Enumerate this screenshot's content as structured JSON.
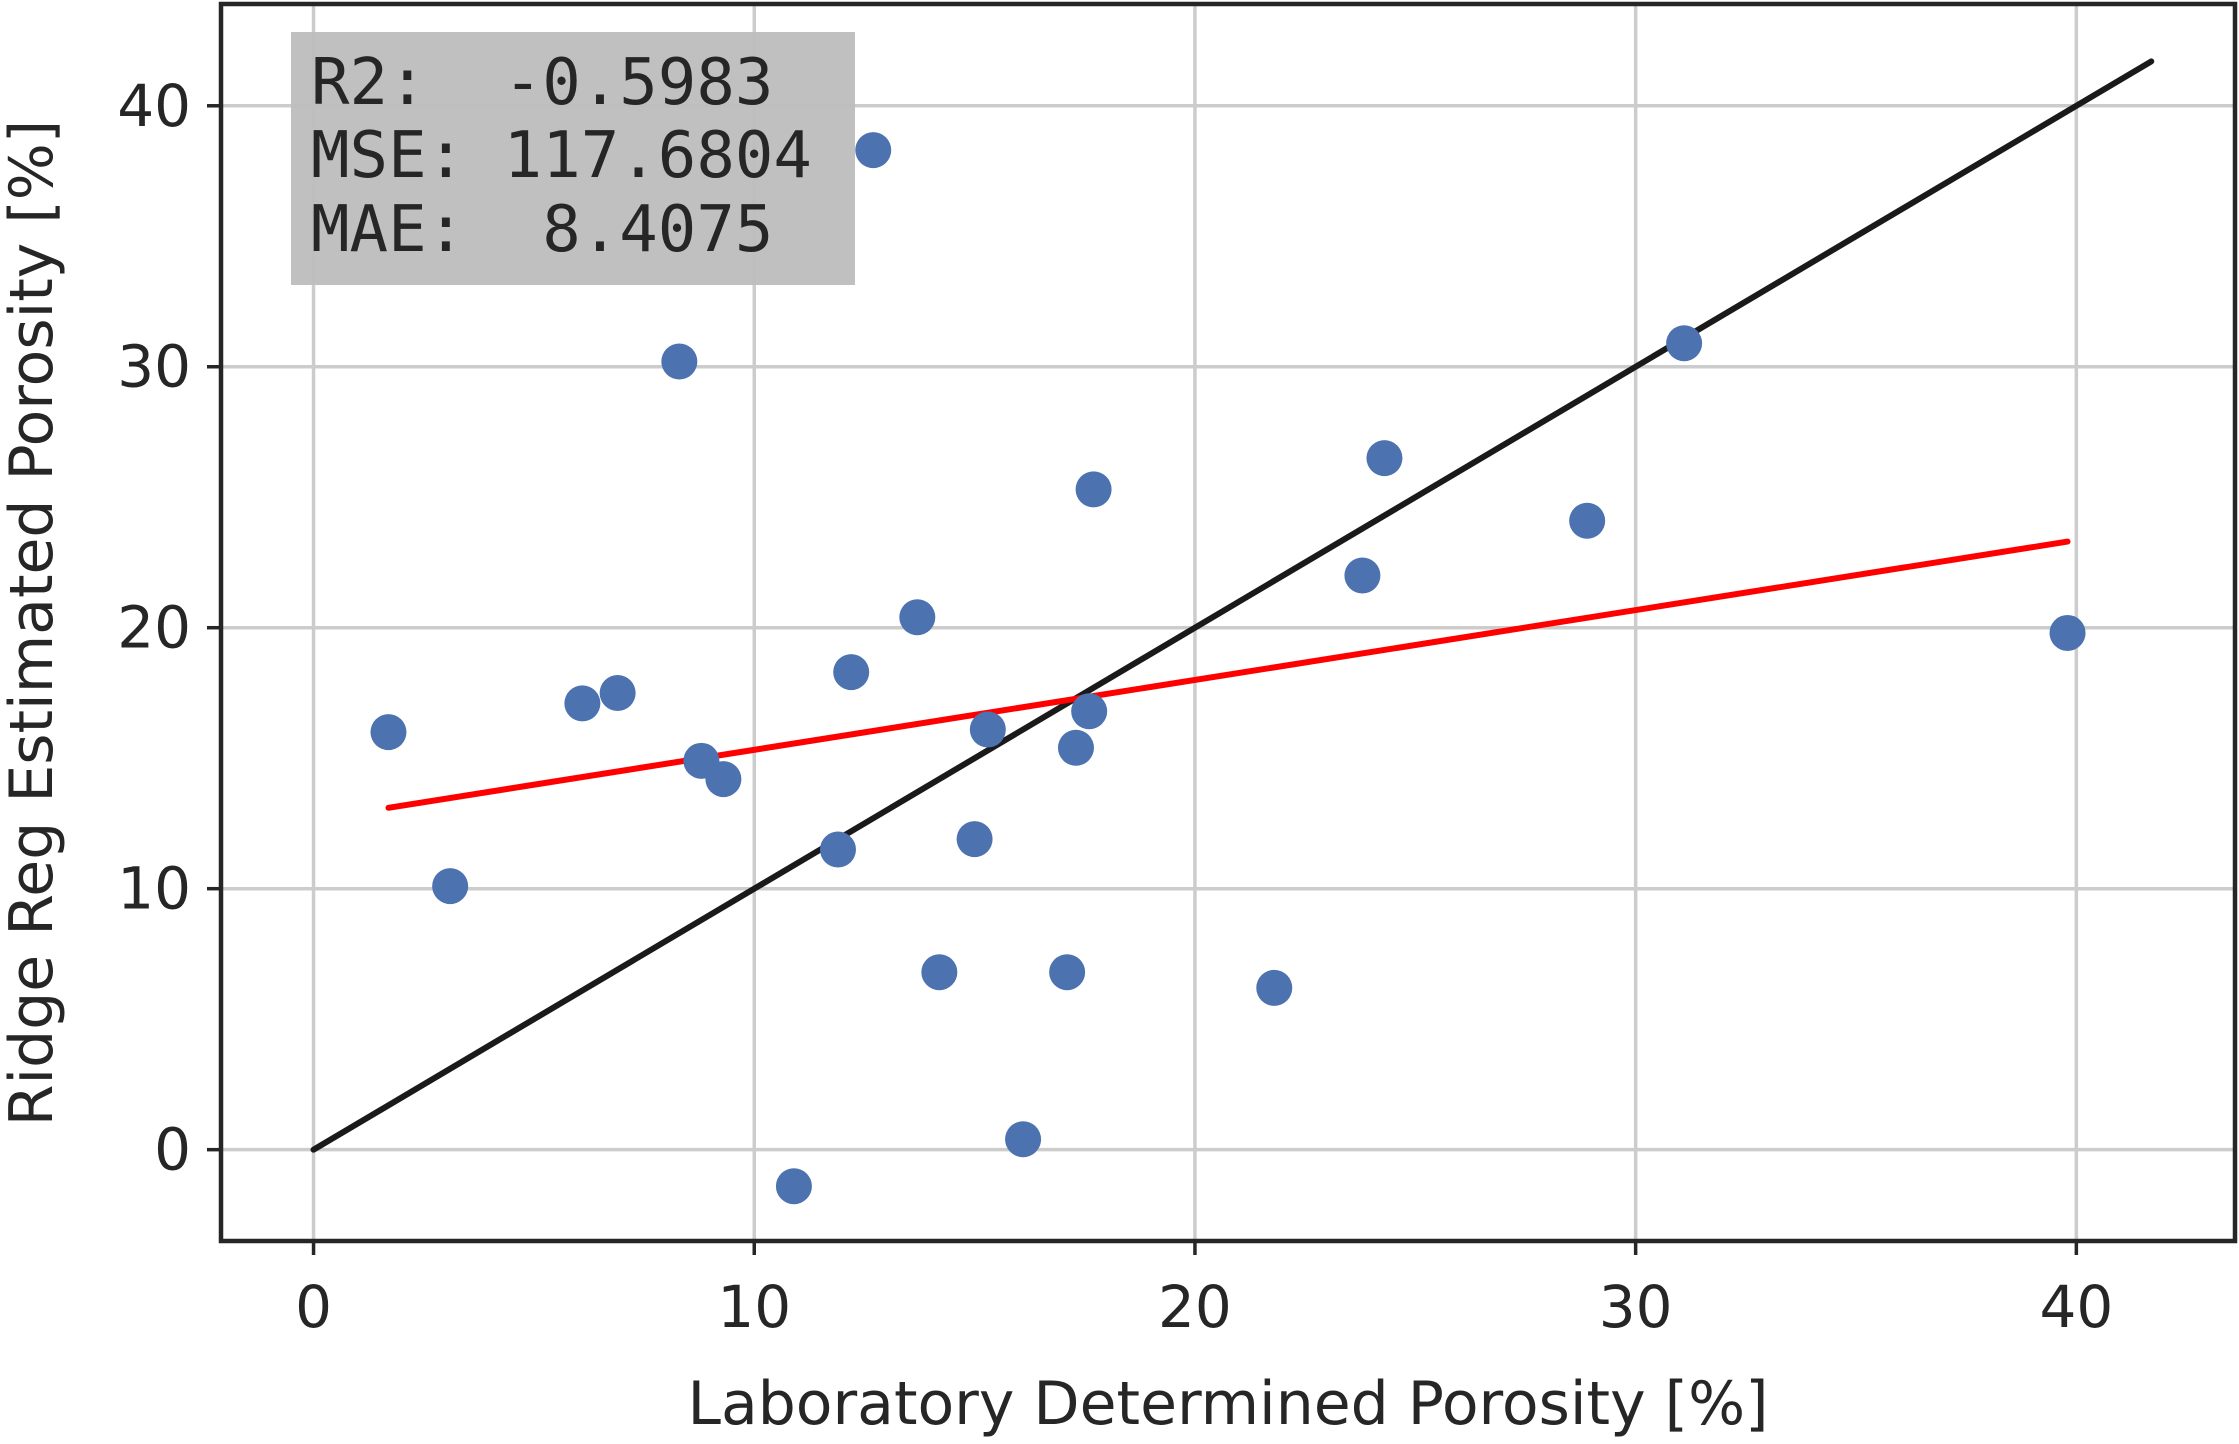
{
  "chart_data": {
    "type": "scatter",
    "xlabel": "Laboratory Determined Porosity [%]",
    "ylabel": "Ridge Reg Estimated Porosity [%]",
    "xlim": [
      -2.1,
      43.6
    ],
    "ylim": [
      -3.5,
      43.9
    ],
    "xticks": [
      0,
      10,
      20,
      30,
      40
    ],
    "yticks": [
      0,
      10,
      20,
      30,
      40
    ],
    "grid": true,
    "annotation": [
      "R2:  -0.5983",
      "MSE: 117.6804",
      "MAE:  8.4075"
    ],
    "colors": {
      "points": "#4c72b0",
      "identity_line": "#1a1a1a",
      "fit_line": "#ff0000",
      "stats_box": "#bdbdbd"
    },
    "points": {
      "x": [
        1.7,
        3.1,
        6.1,
        6.9,
        8.3,
        8.8,
        9.3,
        10.9,
        11.9,
        12.2,
        12.7,
        13.7,
        14.2,
        15.0,
        15.3,
        16.1,
        17.1,
        17.3,
        17.6,
        17.7,
        21.8,
        23.8,
        24.3,
        28.9,
        31.1,
        39.8
      ],
      "y": [
        16.0,
        10.1,
        17.1,
        17.5,
        30.2,
        14.9,
        14.2,
        -1.4,
        11.5,
        18.3,
        38.3,
        20.4,
        6.8,
        11.9,
        16.1,
        0.4,
        6.8,
        15.4,
        16.8,
        25.3,
        6.2,
        22.0,
        26.5,
        24.1,
        30.9,
        19.8
      ]
    },
    "lines": [
      {
        "role": "identity",
        "x": [
          0,
          41.7
        ],
        "y": [
          0,
          41.7
        ]
      },
      {
        "role": "fit",
        "x": [
          1.7,
          39.8
        ],
        "y": [
          13.1,
          23.3
        ]
      }
    ]
  }
}
